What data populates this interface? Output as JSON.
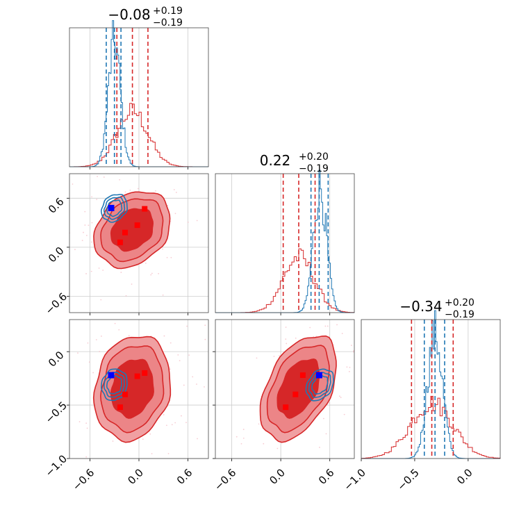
{
  "colors": {
    "red": "#d62728",
    "blue": "#1f77b4",
    "red_fill_outer": "#f0a0a2",
    "red_fill_inner": "#d62728",
    "marker_red": "#ff0000",
    "marker_blue": "#0000ff",
    "grid": "#cccccc"
  },
  "chart_data": {
    "type": "corner",
    "grid": true,
    "params": [
      {
        "title_value": "−0.08",
        "title_plus": "+0.19",
        "title_minus": "−0.19",
        "range": [
          -0.85,
          0.85
        ],
        "ticks": [
          -0.6,
          0.0,
          0.6
        ],
        "tick_labels": [
          "−0.6",
          "0.0",
          "0.6"
        ],
        "red_quantiles": [
          -0.27,
          -0.08,
          0.11
        ],
        "blue_quantiles": [
          -0.4,
          -0.3,
          -0.22
        ],
        "red_hist": {
          "mean": -0.08,
          "sd": 0.19
        },
        "blue_hist": {
          "mean": -0.3,
          "sd": 0.075
        }
      },
      {
        "title_value": "0.22",
        "title_plus": "+0.20",
        "title_minus": "−0.19",
        "range": [
          -0.8,
          0.9
        ],
        "ticks": [
          -0.6,
          0.0,
          0.6
        ],
        "tick_labels": [
          "−0.6",
          "0.0",
          "0.6"
        ],
        "red_quantiles": [
          0.03,
          0.22,
          0.42
        ],
        "blue_quantiles": [
          0.37,
          0.47,
          0.58
        ],
        "red_hist": {
          "mean": 0.22,
          "sd": 0.19
        },
        "blue_hist": {
          "mean": 0.48,
          "sd": 0.08
        }
      },
      {
        "title_value": "−0.34",
        "title_plus": "+0.20",
        "title_minus": "−0.19",
        "range": [
          -1.0,
          0.3
        ],
        "ticks": [
          -1.0,
          -0.5,
          0.0
        ],
        "tick_labels": [
          "−1.0",
          "−0.5",
          "0.0"
        ],
        "red_quantiles": [
          -0.53,
          -0.34,
          -0.14
        ],
        "blue_quantiles": [
          -0.41,
          -0.31,
          -0.22
        ],
        "red_hist": {
          "mean": -0.34,
          "sd": 0.2
        },
        "blue_hist": {
          "mean": -0.31,
          "sd": 0.07
        }
      }
    ],
    "pairs": [
      {
        "row": 1,
        "col": 0,
        "red_center": [
          -0.08,
          0.22
        ],
        "red_sd": [
          0.19,
          0.19
        ],
        "red_rho": 0.25,
        "blue_center": [
          -0.3,
          0.48
        ],
        "blue_sd": [
          0.075,
          0.08
        ],
        "blue_rho": 0.2,
        "red_markers": [
          [
            0.07,
            0.47
          ],
          [
            -0.02,
            0.27
          ],
          [
            -0.17,
            0.18
          ],
          [
            -0.23,
            0.06
          ]
        ],
        "blue_marker": [
          -0.34,
          0.48
        ]
      },
      {
        "row": 2,
        "col": 0,
        "red_center": [
          -0.08,
          -0.34
        ],
        "red_sd": [
          0.19,
          0.2
        ],
        "red_rho": 0.15,
        "blue_center": [
          -0.3,
          -0.31
        ],
        "blue_sd": [
          0.075,
          0.07
        ],
        "blue_rho": 0.1,
        "red_markers": [
          [
            0.07,
            -0.2
          ],
          [
            -0.02,
            -0.23
          ],
          [
            -0.17,
            -0.4
          ],
          [
            -0.23,
            -0.52
          ]
        ],
        "blue_marker": [
          -0.34,
          -0.22
        ]
      },
      {
        "row": 2,
        "col": 1,
        "red_center": [
          0.22,
          -0.34
        ],
        "red_sd": [
          0.19,
          0.2
        ],
        "red_rho": 0.45,
        "blue_center": [
          0.48,
          -0.31
        ],
        "blue_sd": [
          0.08,
          0.07
        ],
        "blue_rho": 0.3,
        "red_markers": [
          [
            0.27,
            -0.22
          ],
          [
            0.18,
            -0.4
          ],
          [
            0.06,
            -0.52
          ]
        ],
        "blue_marker": [
          0.47,
          -0.22
        ]
      }
    ]
  }
}
